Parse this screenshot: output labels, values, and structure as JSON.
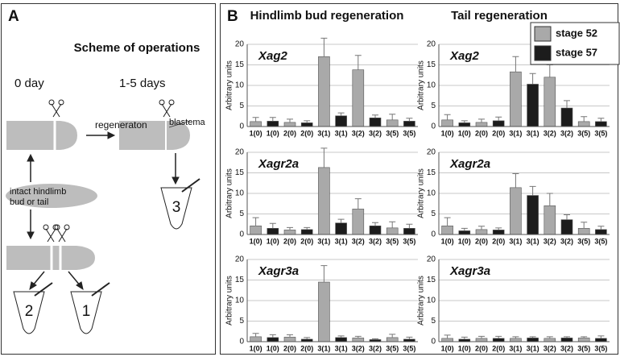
{
  "panel_a": {
    "label": "A",
    "title": "Scheme of operations",
    "day0": "0 day",
    "days": "1-5 days",
    "arrow_label": "regeneraton",
    "blastema": "blastema",
    "intact": [
      "intact hindlimb",
      "bud or tail"
    ],
    "tubes": [
      "3",
      "2",
      "1"
    ]
  },
  "panel_b": {
    "label": "B",
    "columns": [
      "Hindlimb bud regeneration",
      "Tail regeneration"
    ]
  },
  "chart_data": [
    {
      "type": "bar",
      "title": "Xag2",
      "ylabel": "Arbitrary units",
      "categories": [
        "1(0)",
        "2(0)",
        "3(1)",
        "3(2)",
        "3(5)"
      ],
      "ylim": [
        0,
        20
      ],
      "yticks": [
        0,
        5,
        10,
        15,
        20
      ],
      "grid": true,
      "series": [
        {
          "name": "stage 52",
          "color": "#a9a9a9",
          "values": [
            1.2,
            1.0,
            17,
            13.8,
            1.6
          ],
          "errors": [
            1.0,
            0.8,
            4.5,
            3.5,
            1.4
          ]
        },
        {
          "name": "stage 57",
          "color": "#1c1c1c",
          "values": [
            1.3,
            0.9,
            2.6,
            2.1,
            1.3
          ],
          "errors": [
            0.9,
            0.5,
            0.7,
            0.7,
            0.7
          ]
        }
      ]
    },
    {
      "type": "bar",
      "title": "Xag2",
      "ylabel": "Arbitrary units",
      "categories": [
        "1(0)",
        "2(0)",
        "3(1)",
        "3(2)",
        "3(5)"
      ],
      "ylim": [
        0,
        20
      ],
      "yticks": [
        0,
        5,
        10,
        15,
        20
      ],
      "grid": true,
      "legend": "upper right",
      "series": [
        {
          "name": "stage 52",
          "color": "#a9a9a9",
          "values": [
            1.6,
            1.0,
            13.3,
            12,
            1.2
          ],
          "errors": [
            1.3,
            0.8,
            3.7,
            3,
            1.2
          ]
        },
        {
          "name": "stage 57",
          "color": "#1c1c1c",
          "values": [
            0.9,
            1.4,
            10.3,
            4.5,
            1.2
          ],
          "errors": [
            0.5,
            0.9,
            2.6,
            1.8,
            0.8
          ]
        }
      ]
    },
    {
      "type": "bar",
      "title": "Xagr2a",
      "ylabel": "Arbitrary units",
      "categories": [
        "1(0)",
        "2(0)",
        "3(1)",
        "3(2)",
        "3(5)"
      ],
      "ylim": [
        0,
        20
      ],
      "yticks": [
        0,
        5,
        10,
        15,
        20
      ],
      "grid": true,
      "series": [
        {
          "name": "stage 52",
          "color": "#a9a9a9",
          "values": [
            2.1,
            1.1,
            16.3,
            6.2,
            1.6
          ],
          "errors": [
            2,
            0.6,
            4.7,
            2.5,
            1.5
          ]
        },
        {
          "name": "stage 57",
          "color": "#1c1c1c",
          "values": [
            1.5,
            1.2,
            2.8,
            2.1,
            1.5
          ],
          "errors": [
            1.2,
            0.5,
            0.9,
            0.8,
            1
          ]
        }
      ]
    },
    {
      "type": "bar",
      "title": "Xagr2a",
      "ylabel": "Arbitrary units",
      "categories": [
        "1(0)",
        "2(0)",
        "3(1)",
        "3(2)",
        "3(5)"
      ],
      "ylim": [
        0,
        20
      ],
      "yticks": [
        0,
        5,
        10,
        15,
        20
      ],
      "grid": true,
      "series": [
        {
          "name": "stage 52",
          "color": "#a9a9a9",
          "values": [
            2.1,
            1.2,
            11.4,
            7,
            1.5
          ],
          "errors": [
            2,
            0.8,
            3.4,
            3,
            1.5
          ]
        },
        {
          "name": "stage 57",
          "color": "#1c1c1c",
          "values": [
            0.9,
            1.1,
            9.5,
            3.6,
            1.2
          ],
          "errors": [
            0.6,
            0.5,
            2.2,
            1.2,
            0.8
          ]
        }
      ]
    },
    {
      "type": "bar",
      "title": "Xagr3a",
      "ylabel": "Arbitrary units",
      "categories": [
        "1(0)",
        "2(0)",
        "3(1)",
        "3(2)",
        "3(5)"
      ],
      "ylim": [
        0,
        20
      ],
      "yticks": [
        0,
        5,
        10,
        15,
        20
      ],
      "grid": true,
      "series": [
        {
          "name": "stage 52",
          "color": "#a9a9a9",
          "values": [
            1.2,
            1.1,
            14.5,
            0.9,
            1
          ],
          "errors": [
            0.8,
            0.6,
            4,
            0.4,
            0.8
          ]
        },
        {
          "name": "stage 57",
          "color": "#1c1c1c",
          "values": [
            1,
            0.6,
            1,
            0.5,
            0.6
          ],
          "errors": [
            0.7,
            0.4,
            0.4,
            0.2,
            0.5
          ]
        }
      ]
    },
    {
      "type": "bar",
      "title": "Xagr3a",
      "ylabel": "Arbitrary units",
      "categories": [
        "1(0)",
        "2(0)",
        "3(1)",
        "3(2)",
        "3(5)"
      ],
      "ylim": [
        0,
        20
      ],
      "yticks": [
        0,
        5,
        10,
        15,
        20
      ],
      "grid": true,
      "series": [
        {
          "name": "stage 52",
          "color": "#a9a9a9",
          "values": [
            0.8,
            0.8,
            0.8,
            0.8,
            0.9
          ],
          "errors": [
            0.8,
            0.5,
            0.4,
            0.4,
            0.3
          ]
        },
        {
          "name": "stage 57",
          "color": "#1c1c1c",
          "values": [
            0.6,
            0.8,
            0.9,
            0.9,
            0.8
          ],
          "errors": [
            0.5,
            0.5,
            0.3,
            0.3,
            0.6
          ]
        }
      ]
    }
  ]
}
